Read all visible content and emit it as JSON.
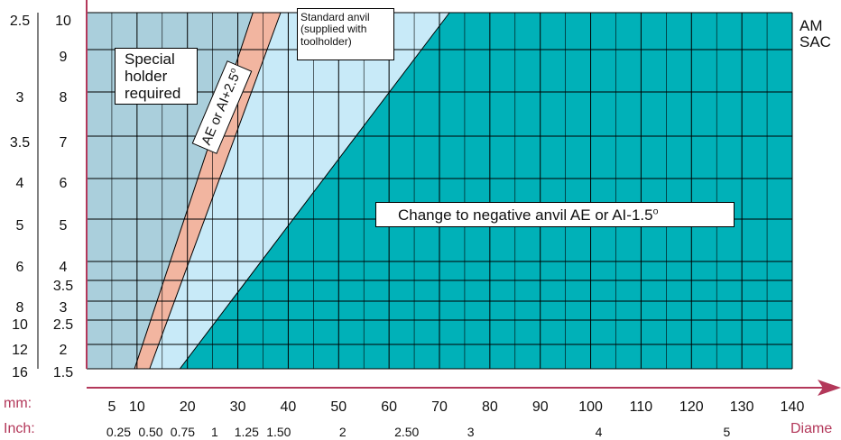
{
  "chart_data": {
    "type": "area",
    "title": "",
    "xlabel": "Diame",
    "x_unit_labels": {
      "mm": "mm:",
      "inch": "Inch:"
    },
    "xlim": [
      0,
      140
    ],
    "x_ticks_mm": [
      5,
      10,
      20,
      30,
      40,
      50,
      60,
      70,
      80,
      90,
      100,
      110,
      120,
      130,
      140
    ],
    "x_ticks_inch": [
      {
        "label": "0.25",
        "mm": 6.35
      },
      {
        "label": "0.50",
        "mm": 12.7
      },
      {
        "label": "0.75",
        "mm": 19.05
      },
      {
        "label": "1",
        "mm": 25.4
      },
      {
        "label": "1.25",
        "mm": 31.75
      },
      {
        "label": "1.50",
        "mm": 38.1
      },
      {
        "label": "2",
        "mm": 50.8
      },
      {
        "label": "2.50",
        "mm": 63.5
      },
      {
        "label": "3",
        "mm": 76.2
      },
      {
        "label": "4",
        "mm": 101.6
      },
      {
        "label": "5",
        "mm": 127
      }
    ],
    "y_rows": [
      {
        "outer": "2.5",
        "inner": "10"
      },
      {
        "outer": "",
        "inner": "9"
      },
      {
        "outer": "3",
        "inner": "8"
      },
      {
        "outer": "3.5",
        "inner": "7"
      },
      {
        "outer": "4",
        "inner": "6"
      },
      {
        "outer": "5",
        "inner": "5"
      },
      {
        "outer": "6",
        "inner": "4"
      },
      {
        "outer": "",
        "inner": "3.5"
      },
      {
        "outer": "8",
        "inner": "3"
      },
      {
        "outer": "10",
        "inner": "2.5"
      },
      {
        "outer": "12",
        "inner": "2"
      },
      {
        "outer": "16",
        "inner": "1.5"
      }
    ],
    "zones": [
      {
        "name": "special_holder",
        "label_lines": [
          "Special",
          "holder",
          "required"
        ],
        "color": "#aacfdc",
        "boundary_bottom_x": 9.5,
        "boundary_top_x": 33
      },
      {
        "name": "ae_ai_plus",
        "label": "AE or AI+2.5",
        "degree": "o",
        "color": "#f2b5a0",
        "boundary_bottom_x": 12.5,
        "boundary_top_x": 38.5
      },
      {
        "name": "standard_anvil",
        "label_lines": [
          "Standard anvil",
          "(supplied with",
          "toolholder)"
        ],
        "color": "#c8eaf8",
        "boundary_bottom_x": 18.5,
        "boundary_top_x": 72
      },
      {
        "name": "negative_anvil",
        "label": "Change to negative anvil AE or AI-1.5",
        "degree": "o",
        "color": "#00b1b8"
      }
    ],
    "grid": true
  },
  "side_title": "AM\nSAC"
}
